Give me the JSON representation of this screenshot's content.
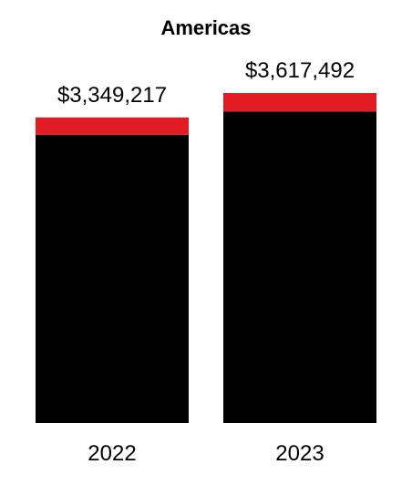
{
  "chart_data": {
    "type": "bar",
    "stacked": true,
    "title": "Americas",
    "xlabel": "",
    "ylabel": "",
    "categories": [
      "2022",
      "2023"
    ],
    "totals": [
      3349217,
      3617492
    ],
    "data_labels": [
      "$3,349,217",
      "$3,617,492"
    ],
    "series": [
      {
        "color": "#000000",
        "values": [
          3160000,
          3415000
        ]
      },
      {
        "color": "#E31B23",
        "values": [
          189217,
          202492
        ]
      }
    ],
    "ylim": [
      0,
      3617492
    ],
    "grid": false,
    "legend": "none"
  }
}
